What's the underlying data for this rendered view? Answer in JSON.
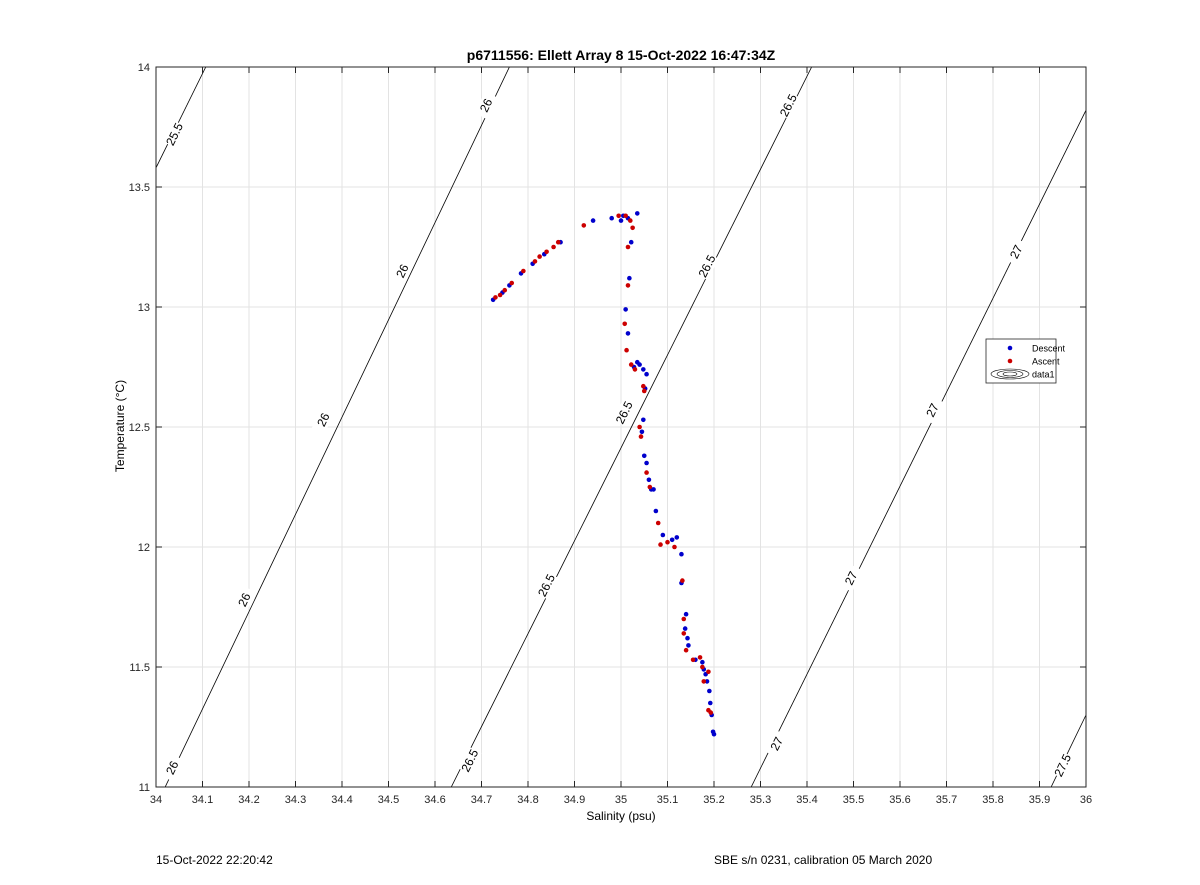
{
  "chart_data": {
    "type": "scatter",
    "title": "p6711556: Ellett Array 8 15-Oct-2022 16:47:34Z",
    "xlabel": "Salinity (psu)",
    "ylabel": "Temperature (°C)",
    "xlim": [
      34,
      36
    ],
    "ylim": [
      11,
      14
    ],
    "xticks": [
      "34",
      "34.1",
      "34.2",
      "34.3",
      "34.4",
      "34.5",
      "34.6",
      "34.7",
      "34.8",
      "34.9",
      "35",
      "35.1",
      "35.2",
      "35.3",
      "35.4",
      "35.5",
      "35.6",
      "35.7",
      "35.8",
      "35.9",
      "36"
    ],
    "yticks": [
      "11",
      "11.5",
      "12",
      "12.5",
      "13",
      "13.5",
      "14"
    ],
    "grid": true,
    "legend": {
      "placement": "right",
      "entries": [
        "Descent",
        "Ascent",
        "data1"
      ]
    },
    "contours": [
      {
        "label": "25.5",
        "points": [
          [
            34.0,
            13.58
          ],
          [
            34.107,
            14.0
          ]
        ],
        "label_at": [
          [
            34.04,
            13.72
          ]
        ]
      },
      {
        "label": "26",
        "points": [
          [
            34.0,
            10.92
          ],
          [
            34.76,
            14.0
          ]
        ],
        "label_at": [
          [
            34.035,
            11.08
          ],
          [
            34.19,
            11.78
          ],
          [
            34.36,
            12.53
          ],
          [
            34.53,
            13.15
          ],
          [
            34.71,
            13.84
          ]
        ]
      },
      {
        "label": "26.5",
        "points": [
          [
            34.635,
            11.0
          ],
          [
            35.41,
            14.0
          ]
        ],
        "label_at": [
          [
            34.675,
            11.11
          ],
          [
            34.84,
            11.84
          ],
          [
            35.007,
            12.56
          ],
          [
            35.185,
            13.17
          ],
          [
            35.36,
            13.84
          ]
        ]
      },
      {
        "label": "27",
        "points": [
          [
            35.28,
            11.0
          ],
          [
            36.0,
            13.82
          ]
        ],
        "label_at": [
          [
            35.335,
            11.18
          ],
          [
            35.495,
            11.87
          ],
          [
            35.67,
            12.57
          ],
          [
            35.85,
            13.23
          ]
        ]
      },
      {
        "label": "27.5",
        "points": [
          [
            35.925,
            11.0
          ],
          [
            36.0,
            11.3
          ]
        ],
        "label_at": [
          [
            35.95,
            11.09
          ]
        ]
      }
    ],
    "series": [
      {
        "name": "Descent",
        "color": "#0000cc",
        "points": [
          [
            34.725,
            13.03
          ],
          [
            34.745,
            13.06
          ],
          [
            34.76,
            13.09
          ],
          [
            34.785,
            13.14
          ],
          [
            34.81,
            13.18
          ],
          [
            34.835,
            13.22
          ],
          [
            34.87,
            13.27
          ],
          [
            34.94,
            13.36
          ],
          [
            34.98,
            13.37
          ],
          [
            35.0,
            13.36
          ],
          [
            35.005,
            13.38
          ],
          [
            35.015,
            13.37
          ],
          [
            35.035,
            13.39
          ],
          [
            35.022,
            13.27
          ],
          [
            35.018,
            13.12
          ],
          [
            35.01,
            12.99
          ],
          [
            35.015,
            12.89
          ],
          [
            35.028,
            12.75
          ],
          [
            35.035,
            12.77
          ],
          [
            35.04,
            12.76
          ],
          [
            35.048,
            12.74
          ],
          [
            35.055,
            12.72
          ],
          [
            35.052,
            12.66
          ],
          [
            35.045,
            12.48
          ],
          [
            35.048,
            12.53
          ],
          [
            35.05,
            12.38
          ],
          [
            35.055,
            12.35
          ],
          [
            35.06,
            12.28
          ],
          [
            35.065,
            12.24
          ],
          [
            35.07,
            12.24
          ],
          [
            35.075,
            12.15
          ],
          [
            35.09,
            12.05
          ],
          [
            35.11,
            12.03
          ],
          [
            35.12,
            12.04
          ],
          [
            35.13,
            11.97
          ],
          [
            35.13,
            11.85
          ],
          [
            35.14,
            11.72
          ],
          [
            35.138,
            11.66
          ],
          [
            35.143,
            11.62
          ],
          [
            35.145,
            11.59
          ],
          [
            35.16,
            11.53
          ],
          [
            35.175,
            11.52
          ],
          [
            35.178,
            11.49
          ],
          [
            35.182,
            11.47
          ],
          [
            35.185,
            11.44
          ],
          [
            35.19,
            11.4
          ],
          [
            35.192,
            11.35
          ],
          [
            35.195,
            11.3
          ],
          [
            35.198,
            11.23
          ],
          [
            35.2,
            11.22
          ]
        ]
      },
      {
        "name": "Ascent",
        "color": "#cc0000",
        "points": [
          [
            34.73,
            13.04
          ],
          [
            34.74,
            13.05
          ],
          [
            34.75,
            13.07
          ],
          [
            34.765,
            13.1
          ],
          [
            34.79,
            13.15
          ],
          [
            34.815,
            13.19
          ],
          [
            34.825,
            13.21
          ],
          [
            34.84,
            13.23
          ],
          [
            34.855,
            13.25
          ],
          [
            34.865,
            13.27
          ],
          [
            34.92,
            13.34
          ],
          [
            34.995,
            13.38
          ],
          [
            35.01,
            13.38
          ],
          [
            35.02,
            13.36
          ],
          [
            35.025,
            13.33
          ],
          [
            35.015,
            13.25
          ],
          [
            35.015,
            13.09
          ],
          [
            35.008,
            12.93
          ],
          [
            35.012,
            12.82
          ],
          [
            35.022,
            12.76
          ],
          [
            35.03,
            12.74
          ],
          [
            35.048,
            12.67
          ],
          [
            35.05,
            12.65
          ],
          [
            35.04,
            12.5
          ],
          [
            35.043,
            12.46
          ],
          [
            35.055,
            12.31
          ],
          [
            35.062,
            12.25
          ],
          [
            35.08,
            12.1
          ],
          [
            35.085,
            12.01
          ],
          [
            35.1,
            12.02
          ],
          [
            35.115,
            12.0
          ],
          [
            35.132,
            11.86
          ],
          [
            35.135,
            11.7
          ],
          [
            35.135,
            11.64
          ],
          [
            35.14,
            11.57
          ],
          [
            35.155,
            11.53
          ],
          [
            35.17,
            11.54
          ],
          [
            35.175,
            11.5
          ],
          [
            35.178,
            11.44
          ],
          [
            35.188,
            11.32
          ],
          [
            35.193,
            11.31
          ],
          [
            35.188,
            11.48
          ]
        ]
      }
    ]
  },
  "footer": {
    "left": "15-Oct-2022 22:20:42",
    "right": "SBE s/n 0231, calibration 05 March 2020"
  }
}
